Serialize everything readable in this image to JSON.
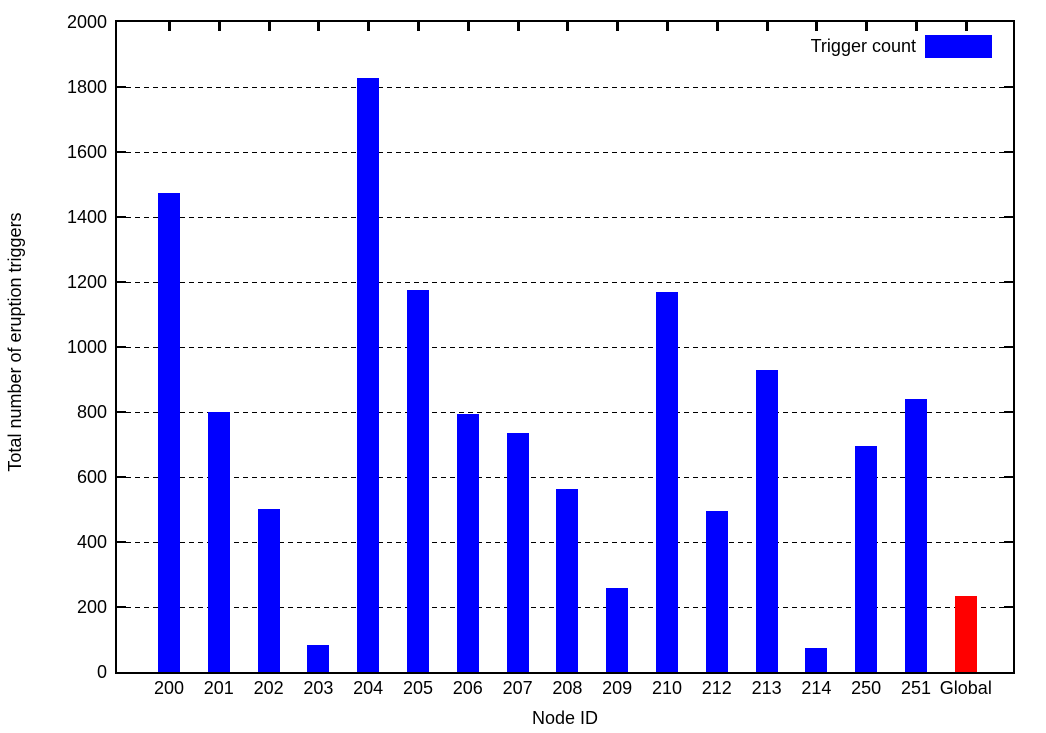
{
  "chart_data": {
    "type": "bar",
    "title": "",
    "xlabel": "Node ID",
    "ylabel": "Total number of eruption triggers",
    "categories": [
      "200",
      "201",
      "202",
      "203",
      "204",
      "205",
      "206",
      "207",
      "208",
      "209",
      "210",
      "212",
      "213",
      "214",
      "250",
      "251",
      "Global"
    ],
    "values": [
      1474,
      801,
      502,
      84,
      1827,
      1174,
      794,
      734,
      562,
      259,
      1169,
      494,
      928,
      75,
      694,
      839,
      233
    ],
    "bar_colors": [
      "#0000ff",
      "#0000ff",
      "#0000ff",
      "#0000ff",
      "#0000ff",
      "#0000ff",
      "#0000ff",
      "#0000ff",
      "#0000ff",
      "#0000ff",
      "#0000ff",
      "#0000ff",
      "#0000ff",
      "#0000ff",
      "#0000ff",
      "#0000ff",
      "#ff0000"
    ],
    "ylim": [
      0,
      2000
    ],
    "yticks": [
      0,
      200,
      400,
      600,
      800,
      1000,
      1200,
      1400,
      1600,
      1800,
      2000
    ],
    "ytick_labels": [
      "0",
      "200",
      "400",
      "600",
      "800",
      "1000",
      "1200",
      "1400",
      "1600",
      "1800",
      "2000"
    ],
    "grid": "horizontal-dashed",
    "grid_color": "#000000",
    "axis_color": "#000000",
    "background_color": "#ffffff",
    "legend": {
      "label": "Trigger count",
      "swatch_color": "#0000ff",
      "position": "top-right-inside"
    }
  }
}
